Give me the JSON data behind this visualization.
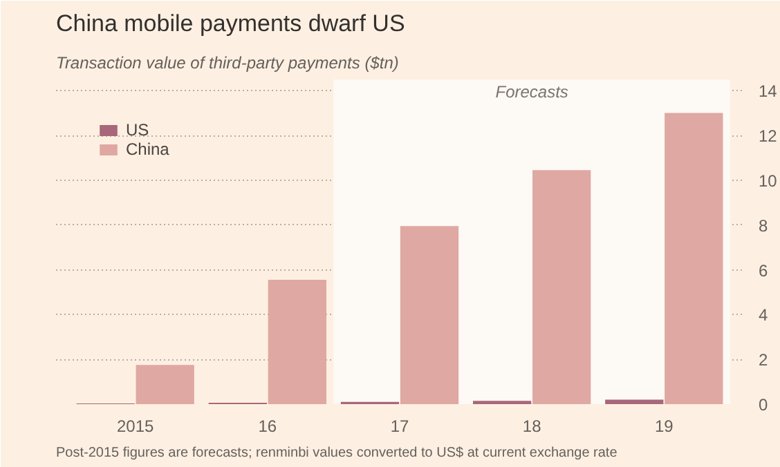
{
  "chart_data": {
    "type": "bar",
    "title": "China mobile payments dwarf US",
    "subtitle": "Transaction value of third-party payments ($tn)",
    "categories": [
      "2015",
      "16",
      "17",
      "18",
      "19"
    ],
    "series": [
      {
        "name": "US",
        "color": "#a8677a",
        "values": [
          0.03,
          0.06,
          0.1,
          0.15,
          0.2
        ]
      },
      {
        "name": "China",
        "color": "#dfa8a3",
        "values": [
          1.75,
          5.55,
          7.95,
          10.45,
          13.0
        ]
      }
    ],
    "ylim": [
      0,
      14.5
    ],
    "yticks": [
      0,
      2,
      4,
      6,
      8,
      10,
      12,
      14
    ],
    "grid": "y",
    "legend": "top left",
    "bands": [
      {
        "axis": "x",
        "from": "17",
        "to": "19",
        "label": "Forecasts",
        "color": "#fdf9f4"
      }
    ],
    "annotations": [
      "Post-2015 figures are forecasts; renminbi values converted to US$ at current exchange rate"
    ]
  }
}
